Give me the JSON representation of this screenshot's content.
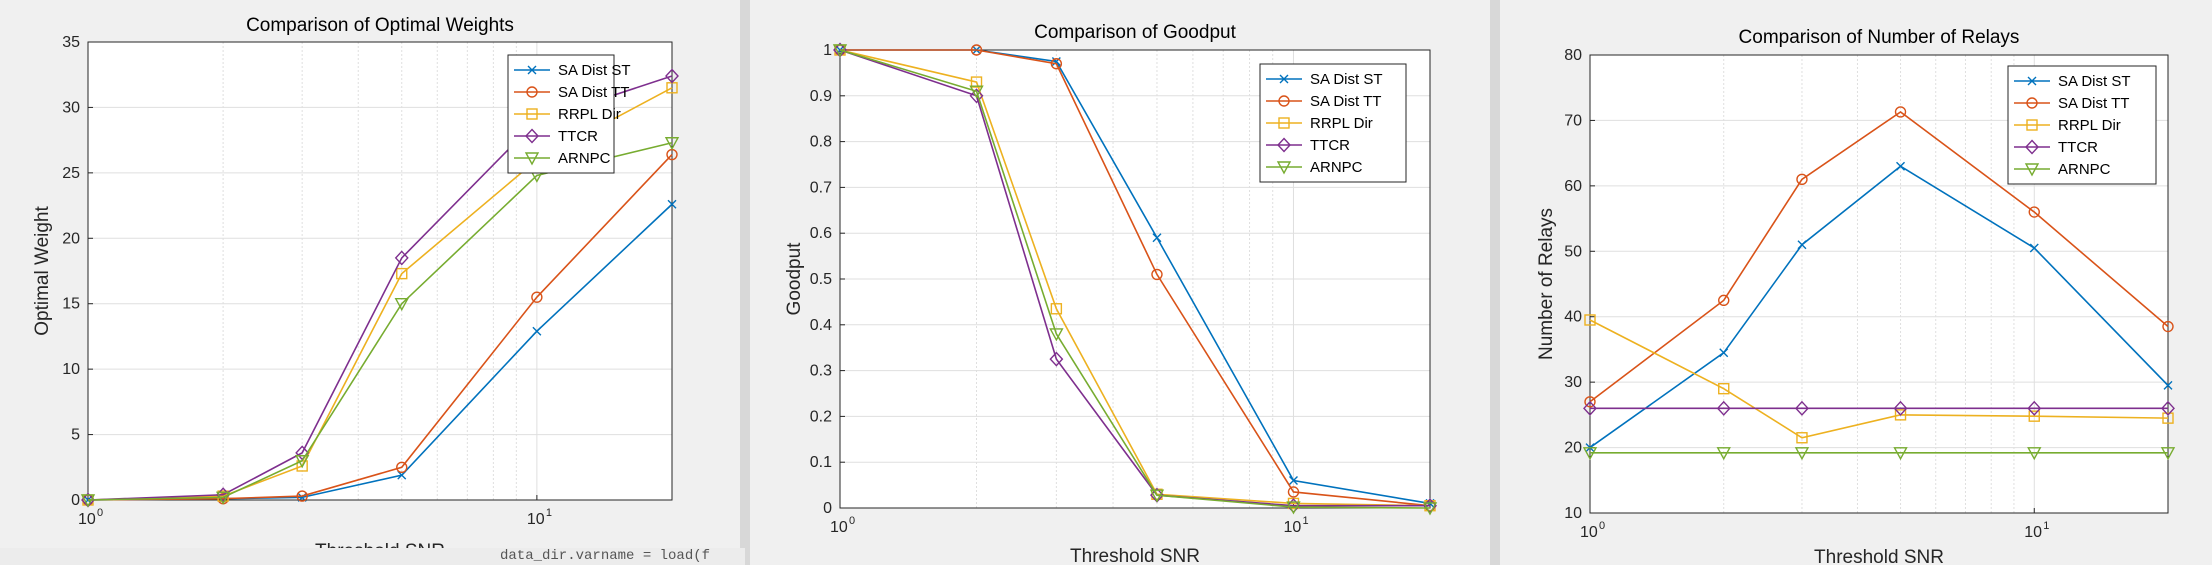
{
  "colors": {
    "series": [
      "#0072BD",
      "#D95319",
      "#EDB120",
      "#7E2F8E",
      "#77AC30"
    ],
    "axes": "#262626",
    "grid": "#dfdfdf",
    "plot_bg": "#ffffff",
    "legend_border": "#262626"
  },
  "code_fragment": "data_dir.varname = load(f",
  "chart_data": [
    {
      "type": "line",
      "title": "Comparison of Optimal Weights",
      "xlabel": "Threshold SNR",
      "ylabel": "Optimal Weight",
      "xscale": "log",
      "xlim": [
        1,
        20
      ],
      "ylim": [
        0,
        35
      ],
      "yticks": [
        0,
        5,
        10,
        15,
        20,
        25,
        30,
        35
      ],
      "xticks": [
        {
          "value": 1,
          "base": "10",
          "exp": "0"
        },
        {
          "value": 10,
          "base": "10",
          "exp": "1"
        }
      ],
      "grid": true,
      "legend_position": "top-right",
      "x": [
        1,
        2,
        3,
        5,
        10,
        20
      ],
      "series": [
        {
          "name": "SA Dist ST",
          "marker": "x",
          "values": [
            0,
            0.1,
            0.2,
            1.9,
            12.9,
            22.6
          ]
        },
        {
          "name": "SA Dist TT",
          "marker": "o",
          "values": [
            0,
            0.1,
            0.3,
            2.5,
            15.5,
            26.4
          ]
        },
        {
          "name": "RRPL Dir",
          "marker": "square",
          "values": [
            0,
            0.3,
            2.6,
            17.3,
            26.0,
            31.5
          ]
        },
        {
          "name": "TTCR",
          "marker": "diamond",
          "values": [
            0,
            0.4,
            3.6,
            18.5,
            29.0,
            32.4
          ]
        },
        {
          "name": "ARNPC",
          "marker": "triangle-down",
          "values": [
            0,
            0.2,
            3.0,
            15.0,
            24.8,
            27.3
          ]
        }
      ]
    },
    {
      "type": "line",
      "title": "Comparison of Goodput",
      "xlabel": "Threshold SNR",
      "ylabel": "Goodput",
      "xscale": "log",
      "xlim": [
        1,
        20
      ],
      "ylim": [
        0,
        1
      ],
      "yticks": [
        "0",
        "0.1",
        "0.2",
        "0.3",
        "0.4",
        "0.5",
        "0.6",
        "0.7",
        "0.8",
        "0.9",
        "1"
      ],
      "xticks": [
        {
          "value": 1,
          "base": "10",
          "exp": "0"
        },
        {
          "value": 10,
          "base": "10",
          "exp": "1"
        }
      ],
      "grid": true,
      "legend_position": "top-right",
      "x": [
        1,
        2,
        3,
        5,
        10,
        20
      ],
      "series": [
        {
          "name": "SA Dist ST",
          "marker": "x",
          "values": [
            1.0,
            1.0,
            0.975,
            0.59,
            0.06,
            0.01
          ]
        },
        {
          "name": "SA Dist TT",
          "marker": "o",
          "values": [
            1.0,
            1.0,
            0.97,
            0.51,
            0.035,
            0.005
          ]
        },
        {
          "name": "RRPL Dir",
          "marker": "square",
          "values": [
            1.0,
            0.93,
            0.435,
            0.03,
            0.01,
            0.005
          ]
        },
        {
          "name": "TTCR",
          "marker": "diamond",
          "values": [
            1.0,
            0.9,
            0.325,
            0.028,
            0.005,
            0.005
          ]
        },
        {
          "name": "ARNPC",
          "marker": "triangle-down",
          "values": [
            1.0,
            0.91,
            0.38,
            0.028,
            0.002,
            0.0
          ]
        }
      ]
    },
    {
      "type": "line",
      "title": "Comparison of Number of Relays",
      "xlabel": "Threshold SNR",
      "ylabel": "Number of Relays",
      "xscale": "log",
      "xlim": [
        1,
        20
      ],
      "ylim": [
        10,
        80
      ],
      "yticks": [
        10,
        20,
        30,
        40,
        50,
        60,
        70,
        80
      ],
      "xticks": [
        {
          "value": 1,
          "base": "10",
          "exp": "0"
        },
        {
          "value": 10,
          "base": "10",
          "exp": "1"
        }
      ],
      "grid": true,
      "legend_position": "top-right",
      "x": [
        1,
        2,
        3,
        5,
        10,
        20
      ],
      "series": [
        {
          "name": "SA Dist ST",
          "marker": "x",
          "values": [
            20,
            34.5,
            51,
            63,
            50.5,
            29.5
          ]
        },
        {
          "name": "SA Dist TT",
          "marker": "o",
          "values": [
            27,
            42.5,
            61,
            71.3,
            56,
            38.5
          ]
        },
        {
          "name": "RRPL Dir",
          "marker": "square",
          "values": [
            39.5,
            29,
            21.5,
            25,
            24.8,
            24.5
          ]
        },
        {
          "name": "TTCR",
          "marker": "diamond",
          "values": [
            26,
            26,
            26,
            26,
            26,
            26
          ]
        },
        {
          "name": "ARNPC",
          "marker": "triangle-down",
          "values": [
            19.2,
            19.2,
            19.2,
            19.2,
            19.2,
            19.2
          ]
        }
      ]
    }
  ]
}
